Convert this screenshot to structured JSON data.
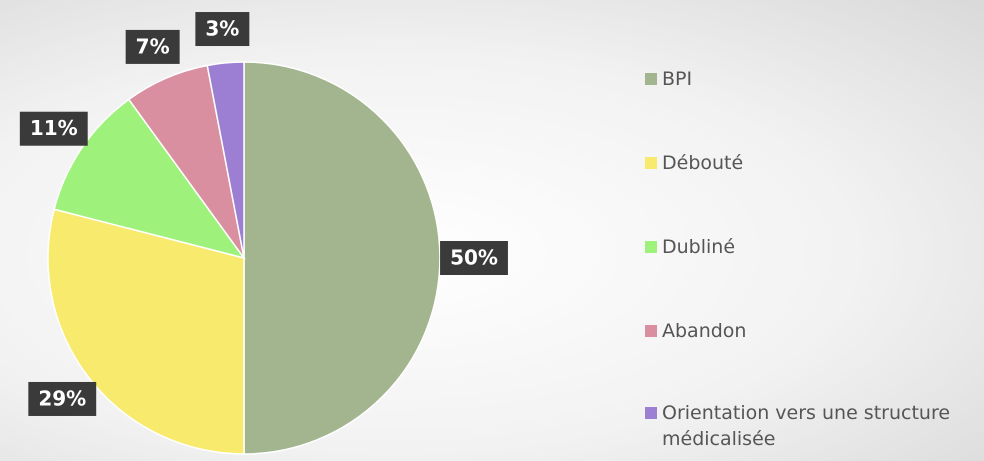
{
  "chart_data": {
    "type": "pie",
    "categories": [
      "BPI",
      "Débouté",
      "Dubliné",
      "Abandon",
      "Orientation vers une structure médicalisée"
    ],
    "values": [
      50,
      29,
      11,
      7,
      3
    ],
    "value_labels": [
      "50%",
      "29%",
      "11%",
      "7%",
      "3%"
    ],
    "colors": [
      "#a2b58e",
      "#f7ea6c",
      "#9ef27c",
      "#d98fa0",
      "#9c7fd2"
    ],
    "legend": "right"
  }
}
